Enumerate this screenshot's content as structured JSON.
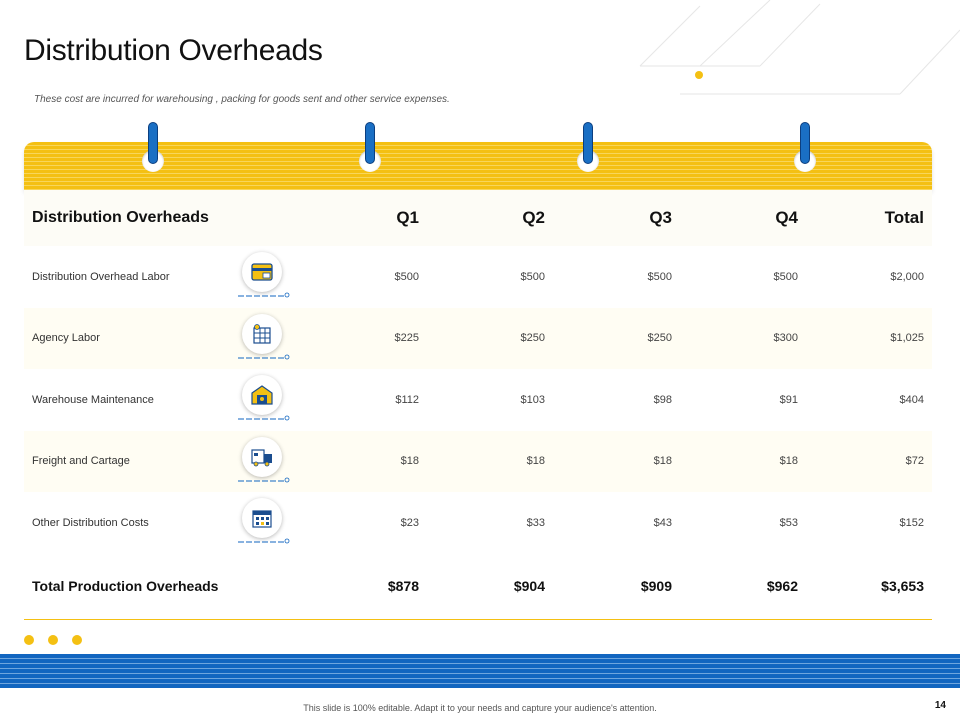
{
  "slide": {
    "title": "Distribution Overheads",
    "subtitle": "These cost are incurred for warehousing , packing for goods sent and other service expenses.",
    "footer": "This slide is 100% editable. Adapt it to your needs and capture your audience's attention.",
    "page_number": "14"
  },
  "table": {
    "header": {
      "label": "Distribution Overheads",
      "q1": "Q1",
      "q2": "Q2",
      "q3": "Q3",
      "q4": "Q4",
      "total": "Total"
    },
    "rows": [
      {
        "label": "Distribution  Overhead Labor",
        "icon": "payment-card-icon",
        "q1": "$500",
        "q2": "$500",
        "q3": "$500",
        "q4": "$500",
        "total": "$2,000"
      },
      {
        "label": "Agency Labor",
        "icon": "worker-scaffold-icon",
        "q1": "$225",
        "q2": "$250",
        "q3": "$250",
        "q4": "$300",
        "total": "$1,025"
      },
      {
        "label": "Warehouse Maintenance",
        "icon": "warehouse-icon",
        "q1": "$112",
        "q2": "$103",
        "q3": "$98",
        "q4": "$91",
        "total": "$404"
      },
      {
        "label": "Freight and Cartage",
        "icon": "freight-truck-icon",
        "q1": "$18",
        "q2": "$18",
        "q3": "$18",
        "q4": "$18",
        "total": "$72"
      },
      {
        "label": "Other Distribution  Costs",
        "icon": "building-office-icon",
        "q1": "$23",
        "q2": "$33",
        "q3": "$43",
        "q4": "$53",
        "total": "$152"
      }
    ],
    "total_row": {
      "label": "Total Production Overheads",
      "q1": "$878",
      "q2": "$904",
      "q3": "$909",
      "q4": "$962",
      "total": "$3,653"
    }
  },
  "colors": {
    "accent_yellow": "#f4c013",
    "accent_blue": "#1266c0"
  }
}
